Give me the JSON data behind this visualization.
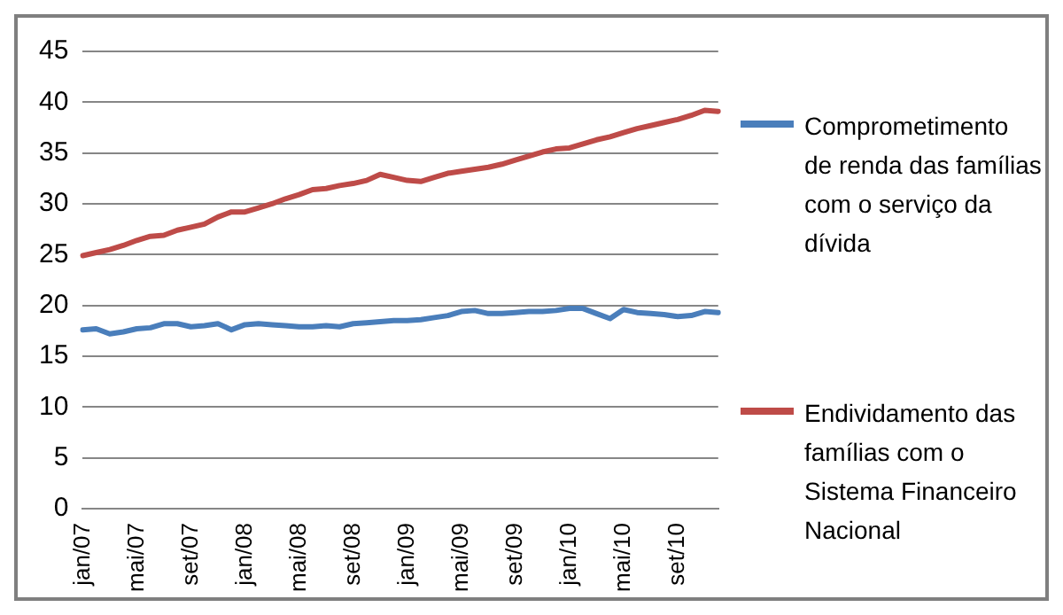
{
  "chart_data": {
    "type": "line",
    "categories": [
      "jan/07",
      null,
      null,
      null,
      "mai/07",
      null,
      null,
      null,
      "set/07",
      null,
      null,
      null,
      "jan/08",
      null,
      null,
      null,
      "mai/08",
      null,
      null,
      null,
      "set/08",
      null,
      null,
      null,
      "jan/09",
      null,
      null,
      null,
      "mai/09",
      null,
      null,
      null,
      "set/09",
      null,
      null,
      null,
      "jan/10",
      null,
      null,
      null,
      "mai/10",
      null,
      null,
      null,
      "set/10",
      null,
      null,
      null
    ],
    "series": [
      {
        "name": "Comprometimento de renda das famílias com o serviço da dívida",
        "color": "#4a7ebb",
        "values": [
          17.6,
          17.7,
          17.2,
          17.4,
          17.7,
          17.8,
          18.2,
          18.2,
          17.9,
          18.0,
          18.2,
          17.6,
          18.1,
          18.2,
          18.1,
          18.0,
          17.9,
          17.9,
          18.0,
          17.9,
          18.2,
          18.3,
          18.4,
          18.5,
          18.5,
          18.6,
          18.8,
          19.0,
          19.4,
          19.5,
          19.2,
          19.2,
          19.3,
          19.4,
          19.4,
          19.5,
          19.7,
          19.7,
          19.2,
          18.7,
          19.6,
          19.3,
          19.2,
          19.1,
          18.9,
          19.0,
          19.4,
          19.3
        ]
      },
      {
        "name": "Endividamento das famílias com o Sistema Financeiro Nacional",
        "color": "#be4b48",
        "values": [
          24.9,
          25.2,
          25.5,
          25.9,
          26.4,
          26.8,
          26.9,
          27.4,
          27.7,
          28.0,
          28.7,
          29.2,
          29.2,
          29.6,
          30.0,
          30.5,
          30.9,
          31.4,
          31.5,
          31.8,
          32.0,
          32.3,
          32.9,
          32.6,
          32.3,
          32.2,
          32.6,
          33.0,
          33.2,
          33.4,
          33.6,
          33.9,
          34.3,
          34.7,
          35.1,
          35.4,
          35.5,
          35.9,
          36.3,
          36.6,
          37.0,
          37.4,
          37.7,
          38.0,
          38.3,
          38.7,
          39.2,
          39.1
        ]
      }
    ],
    "ylim": [
      0,
      45
    ],
    "yticks": [
      0,
      5,
      10,
      15,
      20,
      25,
      30,
      35,
      40,
      45
    ],
    "grid": "y",
    "legend": "right",
    "marker": "none",
    "line_style": "solid"
  }
}
